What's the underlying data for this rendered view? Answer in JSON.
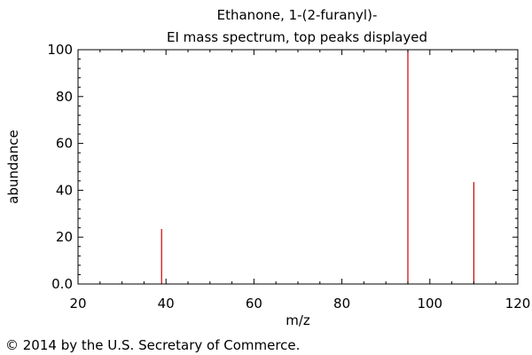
{
  "chart_data": {
    "type": "bar",
    "title": "Ethanone, 1-(2-furanyl)-",
    "subtitle": "EI mass spectrum, top peaks displayed",
    "xlabel": "m/z",
    "ylabel": "abundance",
    "xlim": [
      20,
      120
    ],
    "ylim": [
      0,
      100
    ],
    "x_ticks": [
      "20",
      "40",
      "60",
      "80",
      "100",
      "120"
    ],
    "y_ticks": [
      "0.0",
      "20",
      "40",
      "60",
      "80",
      "100"
    ],
    "grid": false,
    "peaks": [
      {
        "mz": 39,
        "abundance": 23.5
      },
      {
        "mz": 95,
        "abundance": 100
      },
      {
        "mz": 110,
        "abundance": 43.5
      }
    ],
    "peak_color": "#cc0000"
  },
  "footer": {
    "copyright": "© 2014 by the U.S. Secretary of Commerce."
  }
}
